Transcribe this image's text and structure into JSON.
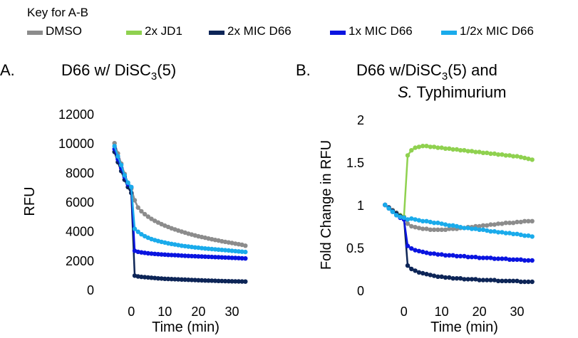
{
  "legend": {
    "title": "Key for A-B",
    "items": [
      {
        "label": "DMSO",
        "color": "#8c8c8c"
      },
      {
        "label": "2x JD1",
        "color": "#8fd14f"
      },
      {
        "label": "2x MIC D66",
        "color": "#0d2557"
      },
      {
        "label": "1x MIC D66",
        "color": "#0a14e0"
      },
      {
        "label": "1/2x MIC D66",
        "color": "#1aabeb"
      }
    ]
  },
  "panel_a": {
    "letter": "A.",
    "title_main": "D66 w/ DiSC",
    "title_sub": "3",
    "title_end": "(5)"
  },
  "panel_b": {
    "letter": "B.",
    "title_main": "D66 w/DiSC",
    "title_sub": "3",
    "title_end": "(5) and",
    "title_line2_italic": "S.",
    "title_line2_rest": " Typhimurium"
  },
  "chart_data": [
    {
      "type": "line",
      "panel": "A",
      "xlabel": "Time (min)",
      "ylabel": "RFU",
      "xlim": [
        -6,
        35
      ],
      "ylim": [
        0,
        12000
      ],
      "xticks": [
        0,
        10,
        20,
        30
      ],
      "yticks": [
        0,
        2000,
        4000,
        6000,
        8000,
        10000,
        12000
      ],
      "x": [
        -5,
        -4,
        -3,
        -2,
        -1,
        0,
        1,
        2,
        3,
        4,
        5,
        6,
        7,
        8,
        9,
        10,
        11,
        12,
        13,
        14,
        15,
        16,
        17,
        18,
        19,
        20,
        21,
        22,
        23,
        24,
        25,
        26,
        27,
        28,
        29,
        30,
        31,
        32,
        33,
        34
      ],
      "series": [
        {
          "name": "DMSO",
          "values": [
            10000,
            9300,
            8600,
            7900,
            7300,
            6900,
            6100,
            5600,
            5350,
            5150,
            4980,
            4830,
            4700,
            4580,
            4470,
            4370,
            4280,
            4190,
            4110,
            4030,
            3960,
            3890,
            3820,
            3760,
            3700,
            3640,
            3590,
            3540,
            3490,
            3440,
            3390,
            3350,
            3300,
            3260,
            3220,
            3180,
            3140,
            3100,
            3060,
            3000
          ]
        },
        {
          "name": "2x MIC D66",
          "values": [
            9400,
            8700,
            8100,
            7500,
            7000,
            6600,
            950,
            900,
            870,
            850,
            830,
            810,
            790,
            770,
            760,
            740,
            730,
            720,
            710,
            700,
            690,
            680,
            670,
            660,
            650,
            640,
            630,
            620,
            615,
            610,
            600,
            595,
            590,
            580,
            575,
            570,
            565,
            560,
            555,
            550
          ]
        },
        {
          "name": "1x MIC D66",
          "values": [
            9600,
            8900,
            8300,
            7700,
            7200,
            7000,
            2650,
            2580,
            2540,
            2510,
            2480,
            2460,
            2440,
            2420,
            2400,
            2390,
            2370,
            2360,
            2350,
            2340,
            2320,
            2310,
            2300,
            2290,
            2280,
            2270,
            2260,
            2250,
            2240,
            2230,
            2220,
            2210,
            2200,
            2190,
            2180,
            2170,
            2160,
            2150,
            2140,
            2130
          ]
        },
        {
          "name": "1/2x MIC D66",
          "values": [
            9800,
            9100,
            8500,
            7800,
            7300,
            7000,
            4150,
            3950,
            3780,
            3650,
            3540,
            3450,
            3380,
            3320,
            3260,
            3210,
            3160,
            3120,
            3080,
            3040,
            3000,
            2970,
            2940,
            2910,
            2880,
            2860,
            2830,
            2810,
            2790,
            2770,
            2750,
            2730,
            2710,
            2690,
            2670,
            2650,
            2630,
            2610,
            2590,
            2570
          ]
        }
      ]
    },
    {
      "type": "line",
      "panel": "B",
      "xlabel": "Time (min)",
      "ylabel": "Fold Change in RFU",
      "xlim": [
        -6,
        35
      ],
      "ylim": [
        0,
        2
      ],
      "xticks": [
        0,
        10,
        20,
        30
      ],
      "yticks": [
        0,
        0.5,
        1,
        1.5,
        2
      ],
      "x": [
        -5,
        -4,
        -3,
        -2,
        -1,
        0,
        1,
        2,
        3,
        4,
        5,
        6,
        7,
        8,
        9,
        10,
        11,
        12,
        13,
        14,
        15,
        16,
        17,
        18,
        19,
        20,
        21,
        22,
        23,
        24,
        25,
        26,
        27,
        28,
        29,
        30,
        31,
        32,
        33,
        34
      ],
      "series": [
        {
          "name": "DMSO",
          "values": [
            1.0,
            0.97,
            0.94,
            0.91,
            0.88,
            0.86,
            0.78,
            0.75,
            0.74,
            0.73,
            0.72,
            0.72,
            0.71,
            0.71,
            0.71,
            0.71,
            0.71,
            0.72,
            0.72,
            0.72,
            0.73,
            0.73,
            0.74,
            0.74,
            0.75,
            0.75,
            0.76,
            0.76,
            0.77,
            0.77,
            0.78,
            0.78,
            0.79,
            0.79,
            0.79,
            0.8,
            0.8,
            0.81,
            0.81,
            0.81
          ]
        },
        {
          "name": "2x JD1",
          "values": [
            1.0,
            0.96,
            0.93,
            0.9,
            0.88,
            0.86,
            1.58,
            1.64,
            1.67,
            1.68,
            1.69,
            1.69,
            1.68,
            1.68,
            1.67,
            1.67,
            1.66,
            1.66,
            1.65,
            1.65,
            1.64,
            1.64,
            1.63,
            1.63,
            1.62,
            1.62,
            1.61,
            1.61,
            1.6,
            1.6,
            1.59,
            1.59,
            1.58,
            1.58,
            1.57,
            1.57,
            1.56,
            1.55,
            1.54,
            1.53
          ]
        },
        {
          "name": "2x MIC D66",
          "values": [
            1.0,
            0.97,
            0.93,
            0.9,
            0.87,
            0.85,
            0.29,
            0.25,
            0.23,
            0.21,
            0.2,
            0.19,
            0.18,
            0.17,
            0.16,
            0.16,
            0.15,
            0.15,
            0.14,
            0.14,
            0.14,
            0.13,
            0.13,
            0.13,
            0.13,
            0.12,
            0.12,
            0.12,
            0.12,
            0.12,
            0.11,
            0.11,
            0.11,
            0.11,
            0.11,
            0.11,
            0.1,
            0.1,
            0.1,
            0.1
          ]
        },
        {
          "name": "1x MIC D66",
          "values": [
            1.0,
            0.96,
            0.92,
            0.88,
            0.85,
            0.83,
            0.52,
            0.49,
            0.47,
            0.46,
            0.45,
            0.44,
            0.43,
            0.43,
            0.42,
            0.42,
            0.41,
            0.41,
            0.41,
            0.4,
            0.4,
            0.4,
            0.39,
            0.39,
            0.39,
            0.38,
            0.38,
            0.38,
            0.38,
            0.37,
            0.37,
            0.37,
            0.37,
            0.36,
            0.36,
            0.36,
            0.36,
            0.35,
            0.35,
            0.35
          ]
        },
        {
          "name": "1/2x MIC D66",
          "values": [
            1.0,
            0.96,
            0.92,
            0.88,
            0.86,
            0.85,
            0.83,
            0.84,
            0.83,
            0.82,
            0.81,
            0.81,
            0.8,
            0.79,
            0.79,
            0.78,
            0.77,
            0.76,
            0.76,
            0.75,
            0.74,
            0.73,
            0.73,
            0.72,
            0.72,
            0.71,
            0.71,
            0.7,
            0.69,
            0.69,
            0.68,
            0.68,
            0.67,
            0.67,
            0.66,
            0.66,
            0.65,
            0.64,
            0.64,
            0.63
          ]
        }
      ]
    }
  ]
}
